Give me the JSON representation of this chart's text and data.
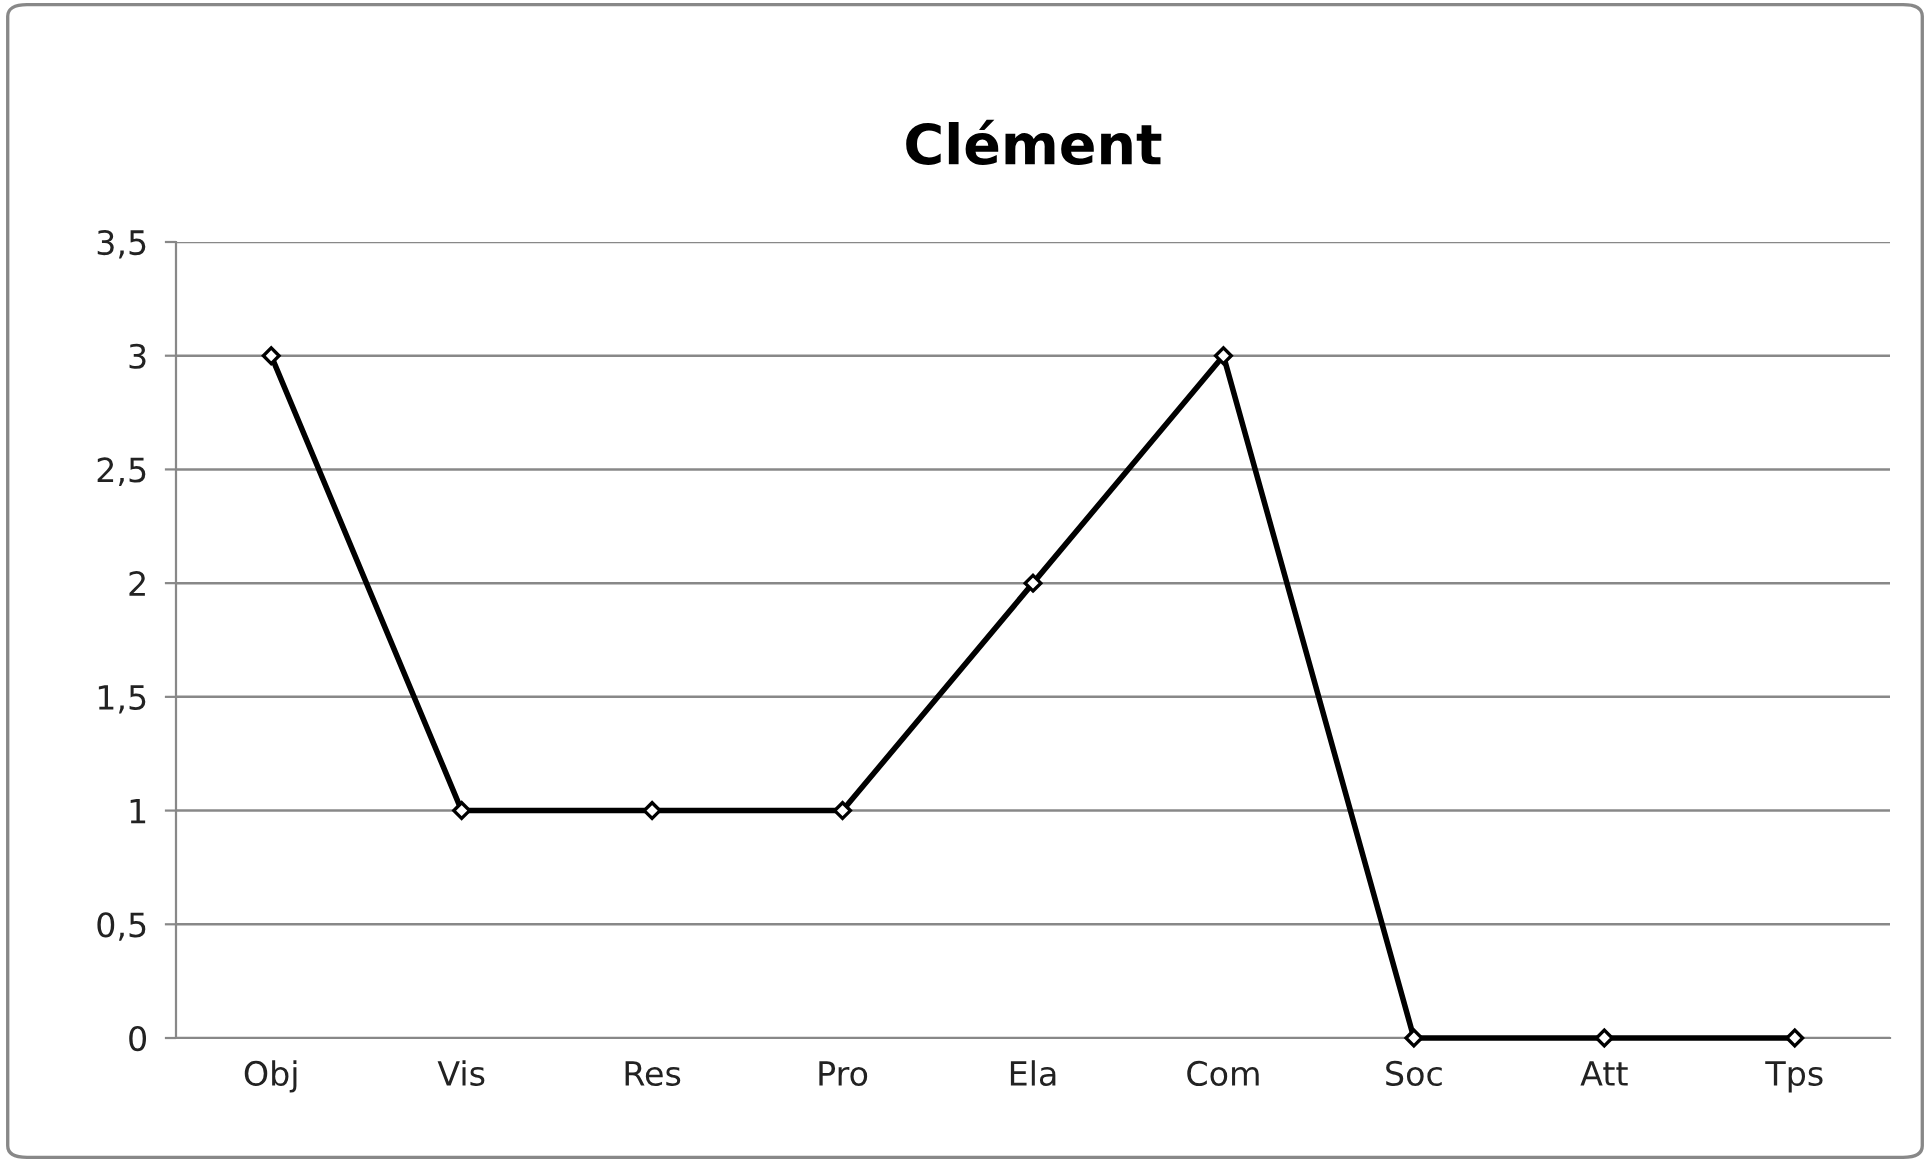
{
  "chart_data": {
    "type": "line",
    "title": "Clément",
    "categories": [
      "Obj",
      "Vis",
      "Res",
      "Pro",
      "Ela",
      "Com",
      "Soc",
      "Att",
      "Tps"
    ],
    "series": [
      {
        "color": "#000000",
        "values": [
          3,
          1,
          1,
          1,
          2,
          3,
          0,
          0,
          0
        ]
      }
    ],
    "ylim": [
      0,
      3.5
    ],
    "yticks": [
      0,
      {
        "value": 0.5,
        "label": "0,5"
      },
      1,
      {
        "value": 1.5,
        "label": "1,5"
      },
      2,
      {
        "value": 2.5,
        "label": "2,5"
      },
      3,
      {
        "value": 3.5,
        "label": "3,5"
      }
    ],
    "grid": "y",
    "marker": "diamond",
    "line_style": "solid"
  }
}
